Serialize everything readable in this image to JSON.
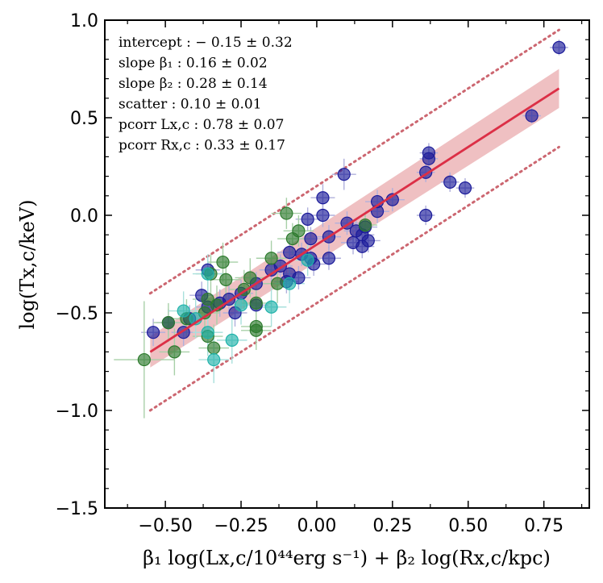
{
  "chart_data": {
    "type": "scatter",
    "title": "",
    "xlabel": "β₁ log(Lx,c/10⁴⁴erg s⁻¹) + β₂ log(Rx,c/kpc)",
    "ylabel": "log(Tx,c/keV)",
    "xlim": [
      -0.7,
      0.9
    ],
    "ylim": [
      -1.5,
      1.0
    ],
    "x_ticks": [
      -0.5,
      -0.25,
      0.0,
      0.25,
      0.5,
      0.75
    ],
    "x_tick_labels": [
      "−0.50",
      "−0.25",
      "0.00",
      "0.25",
      "0.50",
      "0.75"
    ],
    "y_ticks": [
      -1.5,
      -1.0,
      -0.5,
      0.0,
      0.5,
      1.0
    ],
    "y_tick_labels": [
      "−1.5",
      "−1.0",
      "−0.5",
      "0.0",
      "0.5",
      "1.0"
    ],
    "grid": false,
    "annotations": [
      "intercept :  − 0.15 ± 0.32",
      "slope β₁ :  0.16 ± 0.02",
      "slope β₂ :  0.28 ± 0.14",
      "scatter :  0.10 ± 0.01",
      "pcorr Lx,c :  0.78 ± 0.07",
      "pcorr Rx,c :  0.33 ± 0.17"
    ],
    "fit": {
      "intercept": -0.15,
      "slope": 1.0,
      "x_range": [
        -0.55,
        0.8
      ],
      "band_halfwidth_start": 0.08,
      "band_halfwidth_end": 0.1,
      "scatter_offset": 0.3
    },
    "series": [
      {
        "name": "navy",
        "color": "#1c1c9a",
        "points": [
          {
            "x": 0.8,
            "y": 0.86,
            "xe": 0.03,
            "ye": 0.04
          },
          {
            "x": 0.71,
            "y": 0.51,
            "xe": 0.03,
            "ye": 0.04
          },
          {
            "x": 0.37,
            "y": 0.32,
            "xe": 0.03,
            "ye": 0.05
          },
          {
            "x": 0.37,
            "y": 0.29,
            "xe": 0.03,
            "ye": 0.05
          },
          {
            "x": 0.36,
            "y": 0.22,
            "xe": 0.03,
            "ye": 0.05
          },
          {
            "x": 0.44,
            "y": 0.17,
            "xe": 0.03,
            "ye": 0.05
          },
          {
            "x": 0.49,
            "y": 0.14,
            "xe": 0.03,
            "ye": 0.05
          },
          {
            "x": 0.09,
            "y": 0.21,
            "xe": 0.04,
            "ye": 0.08
          },
          {
            "x": 0.02,
            "y": 0.09,
            "xe": 0.04,
            "ye": 0.07
          },
          {
            "x": 0.2,
            "y": 0.07,
            "xe": 0.04,
            "ye": 0.06
          },
          {
            "x": 0.25,
            "y": 0.08,
            "xe": 0.04,
            "ye": 0.06
          },
          {
            "x": 0.36,
            "y": 0.0,
            "xe": 0.03,
            "ye": 0.05
          },
          {
            "x": 0.2,
            "y": 0.02,
            "xe": 0.04,
            "ye": 0.06
          },
          {
            "x": 0.02,
            "y": 0.0,
            "xe": 0.04,
            "ye": 0.06
          },
          {
            "x": -0.03,
            "y": -0.02,
            "xe": 0.04,
            "ye": 0.06
          },
          {
            "x": 0.1,
            "y": -0.04,
            "xe": 0.04,
            "ye": 0.06
          },
          {
            "x": 0.16,
            "y": -0.06,
            "xe": 0.04,
            "ye": 0.06
          },
          {
            "x": 0.13,
            "y": -0.08,
            "xe": 0.04,
            "ye": 0.06
          },
          {
            "x": 0.15,
            "y": -0.1,
            "xe": 0.04,
            "ye": 0.06
          },
          {
            "x": -0.02,
            "y": -0.12,
            "xe": 0.04,
            "ye": 0.06
          },
          {
            "x": 0.04,
            "y": -0.11,
            "xe": 0.04,
            "ye": 0.06
          },
          {
            "x": 0.17,
            "y": -0.13,
            "xe": 0.04,
            "ye": 0.06
          },
          {
            "x": 0.12,
            "y": -0.14,
            "xe": 0.04,
            "ye": 0.06
          },
          {
            "x": 0.15,
            "y": -0.16,
            "xe": 0.04,
            "ye": 0.06
          },
          {
            "x": -0.09,
            "y": -0.19,
            "xe": 0.04,
            "ye": 0.06
          },
          {
            "x": -0.05,
            "y": -0.2,
            "xe": 0.04,
            "ye": 0.06
          },
          {
            "x": -0.02,
            "y": -0.22,
            "xe": 0.04,
            "ye": 0.06
          },
          {
            "x": -0.12,
            "y": -0.26,
            "xe": 0.04,
            "ye": 0.06
          },
          {
            "x": -0.01,
            "y": -0.25,
            "xe": 0.04,
            "ye": 0.06
          },
          {
            "x": 0.04,
            "y": -0.22,
            "xe": 0.04,
            "ye": 0.06
          },
          {
            "x": -0.09,
            "y": -0.3,
            "xe": 0.04,
            "ye": 0.06
          },
          {
            "x": -0.15,
            "y": -0.28,
            "xe": 0.04,
            "ye": 0.06
          },
          {
            "x": -0.06,
            "y": -0.32,
            "xe": 0.04,
            "ye": 0.06
          },
          {
            "x": -0.2,
            "y": -0.35,
            "xe": 0.04,
            "ye": 0.06
          },
          {
            "x": -0.36,
            "y": -0.28,
            "xe": 0.04,
            "ye": 0.07
          },
          {
            "x": -0.1,
            "y": -0.34,
            "xe": 0.04,
            "ye": 0.06
          },
          {
            "x": -0.25,
            "y": -0.4,
            "xe": 0.04,
            "ye": 0.07
          },
          {
            "x": -0.38,
            "y": -0.41,
            "xe": 0.04,
            "ye": 0.07
          },
          {
            "x": -0.29,
            "y": -0.43,
            "xe": 0.04,
            "ye": 0.07
          },
          {
            "x": -0.32,
            "y": -0.45,
            "xe": 0.04,
            "ye": 0.07
          },
          {
            "x": -0.2,
            "y": -0.46,
            "xe": 0.04,
            "ye": 0.07
          },
          {
            "x": -0.36,
            "y": -0.47,
            "xe": 0.04,
            "ye": 0.07
          },
          {
            "x": -0.27,
            "y": -0.5,
            "xe": 0.04,
            "ye": 0.07
          },
          {
            "x": -0.42,
            "y": -0.53,
            "xe": 0.04,
            "ye": 0.07
          },
          {
            "x": -0.44,
            "y": -0.6,
            "xe": 0.04,
            "ye": 0.07
          },
          {
            "x": -0.54,
            "y": -0.6,
            "xe": 0.04,
            "ye": 0.07
          },
          {
            "x": -0.49,
            "y": -0.55,
            "xe": 0.04,
            "ye": 0.07
          }
        ]
      },
      {
        "name": "green",
        "color": "#2d7a2d",
        "points": [
          {
            "x": -0.1,
            "y": 0.01,
            "xe": 0.05,
            "ye": 0.08
          },
          {
            "x": -0.06,
            "y": -0.08,
            "xe": 0.05,
            "ye": 0.08
          },
          {
            "x": -0.08,
            "y": -0.12,
            "xe": 0.05,
            "ye": 0.08
          },
          {
            "x": -0.15,
            "y": -0.22,
            "xe": 0.05,
            "ye": 0.09
          },
          {
            "x": -0.31,
            "y": -0.24,
            "xe": 0.05,
            "ye": 0.1
          },
          {
            "x": -0.35,
            "y": -0.3,
            "xe": 0.05,
            "ye": 0.1
          },
          {
            "x": -0.3,
            "y": -0.33,
            "xe": 0.05,
            "ye": 0.1
          },
          {
            "x": -0.22,
            "y": -0.32,
            "xe": 0.05,
            "ye": 0.1
          },
          {
            "x": -0.13,
            "y": -0.35,
            "xe": 0.05,
            "ye": 0.1
          },
          {
            "x": -0.24,
            "y": -0.38,
            "xe": 0.05,
            "ye": 0.1
          },
          {
            "x": -0.36,
            "y": -0.43,
            "xe": 0.05,
            "ye": 0.1
          },
          {
            "x": -0.2,
            "y": -0.45,
            "xe": 0.05,
            "ye": 0.1
          },
          {
            "x": -0.33,
            "y": -0.46,
            "xe": 0.05,
            "ye": 0.1
          },
          {
            "x": -0.37,
            "y": -0.5,
            "xe": 0.05,
            "ye": 0.1
          },
          {
            "x": -0.43,
            "y": -0.53,
            "xe": 0.05,
            "ye": 0.1
          },
          {
            "x": -0.2,
            "y": -0.57,
            "xe": 0.05,
            "ye": 0.1
          },
          {
            "x": -0.2,
            "y": -0.59,
            "xe": 0.05,
            "ye": 0.1
          },
          {
            "x": -0.36,
            "y": -0.62,
            "xe": 0.05,
            "ye": 0.1
          },
          {
            "x": -0.49,
            "y": -0.55,
            "xe": 0.05,
            "ye": 0.1
          },
          {
            "x": -0.34,
            "y": -0.68,
            "xe": 0.05,
            "ye": 0.12
          },
          {
            "x": -0.47,
            "y": -0.7,
            "xe": 0.05,
            "ye": 0.12
          },
          {
            "x": -0.57,
            "y": -0.74,
            "xe": 0.1,
            "ye": 0.3
          },
          {
            "x": 0.16,
            "y": -0.05,
            "xe": 0.04,
            "ye": 0.06
          }
        ]
      },
      {
        "name": "teal",
        "color": "#20b2aa",
        "points": [
          {
            "x": -0.36,
            "y": -0.3,
            "xe": 0.05,
            "ye": 0.1
          },
          {
            "x": -0.09,
            "y": -0.35,
            "xe": 0.05,
            "ye": 0.1
          },
          {
            "x": -0.25,
            "y": -0.46,
            "xe": 0.05,
            "ye": 0.1
          },
          {
            "x": -0.15,
            "y": -0.47,
            "xe": 0.05,
            "ye": 0.1
          },
          {
            "x": -0.44,
            "y": -0.49,
            "xe": 0.05,
            "ye": 0.1
          },
          {
            "x": -0.4,
            "y": -0.53,
            "xe": 0.05,
            "ye": 0.1
          },
          {
            "x": -0.28,
            "y": -0.64,
            "xe": 0.05,
            "ye": 0.12
          },
          {
            "x": -0.36,
            "y": -0.6,
            "xe": 0.05,
            "ye": 0.12
          },
          {
            "x": -0.34,
            "y": -0.74,
            "xe": 0.05,
            "ye": 0.12
          },
          {
            "x": -0.03,
            "y": -0.23,
            "xe": 0.04,
            "ye": 0.08
          }
        ]
      }
    ]
  },
  "colors": {
    "fit_line": "#dc2f46",
    "band": "#dc7378",
    "scatter_line": "#cc6670",
    "errorbar": "#b0b0dc"
  }
}
